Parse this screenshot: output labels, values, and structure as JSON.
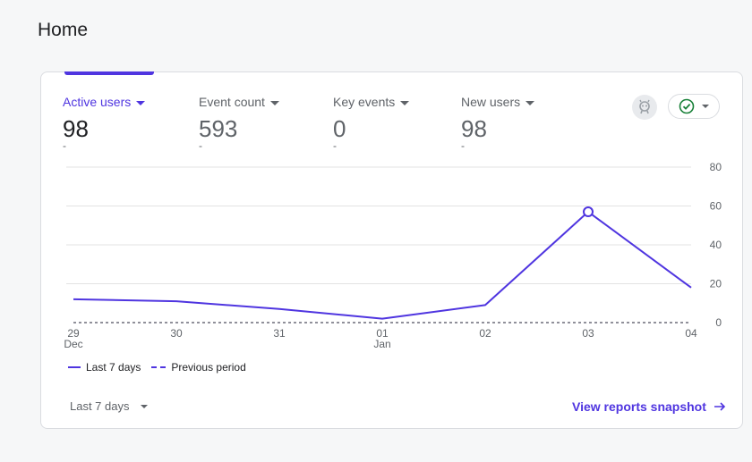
{
  "page": {
    "title": "Home"
  },
  "metrics": [
    {
      "label": "Active users",
      "value": "98",
      "delta": "-"
    },
    {
      "label": "Event count",
      "value": "593",
      "delta": "-"
    },
    {
      "label": "Key events",
      "value": "0",
      "delta": "-"
    },
    {
      "label": "New users",
      "value": "98",
      "delta": "-"
    }
  ],
  "icons": {
    "insights": "insights-icon",
    "status": "check-circle-icon"
  },
  "colors": {
    "accent": "#4f35e0",
    "check": "#188038",
    "grid": "#e3e3e3"
  },
  "chart_data": {
    "type": "line",
    "x_ticks": [
      {
        "day": "29",
        "month": "Dec"
      },
      {
        "day": "30",
        "month": ""
      },
      {
        "day": "31",
        "month": ""
      },
      {
        "day": "01",
        "month": "Jan"
      },
      {
        "day": "02",
        "month": ""
      },
      {
        "day": "03",
        "month": ""
      },
      {
        "day": "04",
        "month": ""
      }
    ],
    "y_ticks": [
      0,
      20,
      40,
      60,
      80
    ],
    "ylim": [
      0,
      80
    ],
    "grid": true,
    "series": [
      {
        "name": "Last 7 days",
        "style": "solid",
        "values": [
          12,
          11,
          7,
          2,
          9,
          57,
          18
        ]
      },
      {
        "name": "Previous period",
        "style": "dashed",
        "values": [
          0,
          0,
          0,
          0,
          0,
          0,
          0
        ]
      }
    ],
    "highlight_index": 5,
    "legend": "bottom-left"
  },
  "footer": {
    "date_range": "Last 7 days",
    "link": "View reports snapshot"
  }
}
